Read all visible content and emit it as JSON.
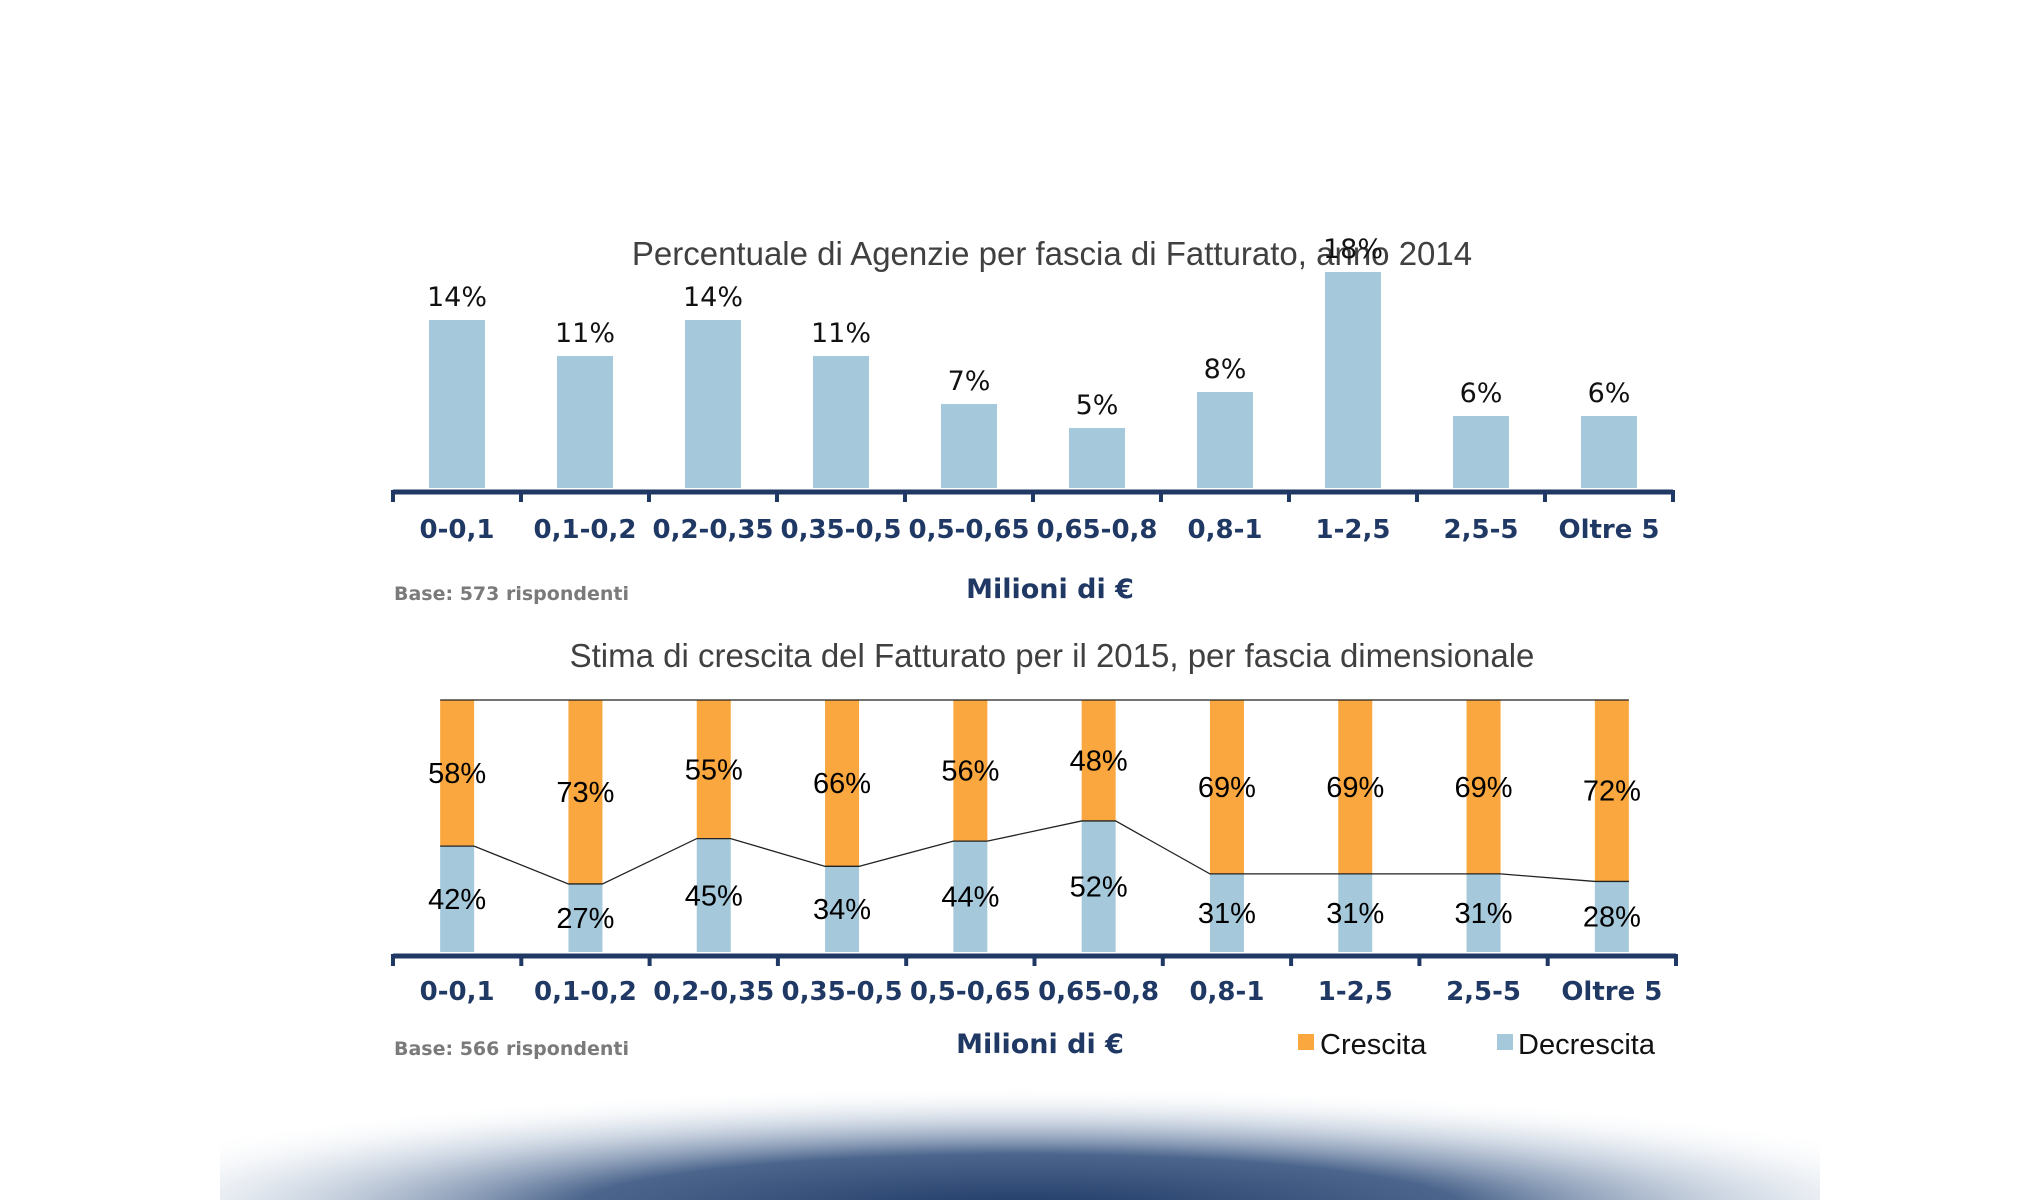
{
  "colors": {
    "bar_blue": "#a5c8db",
    "growth_orange": "#f9a73e",
    "axis_navy": "#1f3864",
    "title_gray": "#404040",
    "base_gray": "#7a7a7a"
  },
  "chart_data": [
    {
      "type": "bar",
      "title": "Percentuale di Agenzie per fascia di Fatturato, anno 2014",
      "categories": [
        "0-0,1",
        "0,1-0,2",
        "0,2-0,35",
        "0,35-0,5",
        "0,5-0,65",
        "0,65-0,8",
        "0,8-1",
        "1-2,5",
        "2,5-5",
        "Oltre 5"
      ],
      "values": [
        14,
        11,
        14,
        11,
        7,
        5,
        8,
        18,
        6,
        6
      ],
      "value_labels": [
        "14%",
        "11%",
        "14%",
        "11%",
        "7%",
        "5%",
        "8%",
        "18%",
        "6%",
        "6%"
      ],
      "xlabel": "Milioni di €",
      "ylabel": "",
      "ylim": [
        0,
        20
      ],
      "grid": false,
      "note": "Base: 573 rispondenti"
    },
    {
      "type": "bar",
      "stacked": true,
      "percent_stacked": true,
      "title": "Stima di crescita del Fatturato per il 2015, per fascia dimensionale",
      "categories": [
        "0-0,1",
        "0,1-0,2",
        "0,2-0,35",
        "0,35-0,5",
        "0,5-0,65",
        "0,65-0,8",
        "0,8-1",
        "1-2,5",
        "2,5-5",
        "Oltre 5"
      ],
      "series": [
        {
          "name": "Decrescita",
          "values": [
            42,
            27,
            45,
            34,
            44,
            52,
            31,
            31,
            31,
            28
          ],
          "labels": [
            "42%",
            "27%",
            "45%",
            "34%",
            "44%",
            "52%",
            "31%",
            "31%",
            "31%",
            "28%"
          ]
        },
        {
          "name": "Crescita",
          "values": [
            58,
            73,
            55,
            66,
            56,
            48,
            69,
            69,
            69,
            72
          ],
          "labels": [
            "58%",
            "73%",
            "55%",
            "66%",
            "56%",
            "48%",
            "69%",
            "69%",
            "69%",
            "72%"
          ]
        }
      ],
      "legend": [
        "Crescita",
        "Decrescita"
      ],
      "legend_position": "bottom-right",
      "xlabel": "Milioni di €",
      "ylim": [
        0,
        100
      ],
      "grid": false,
      "note": "Base: 566 rispondenti"
    }
  ]
}
